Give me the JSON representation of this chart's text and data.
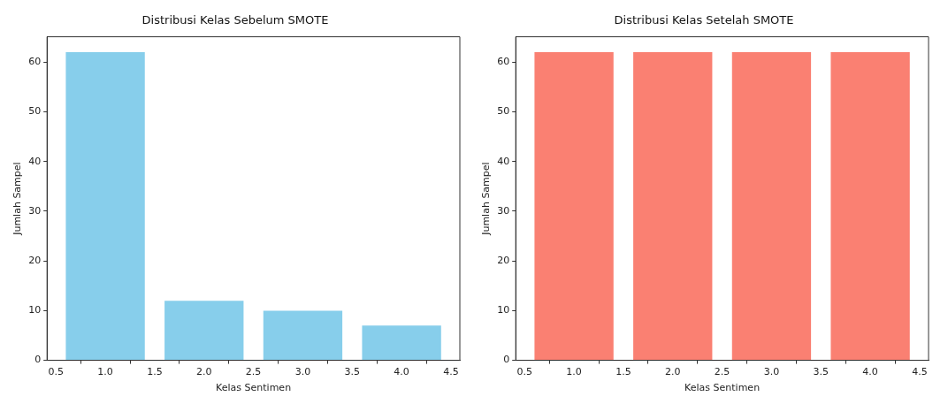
{
  "chart_data": [
    {
      "type": "bar",
      "title": "Distribusi Kelas Sebelum SMOTE",
      "xlabel": "Kelas Sentimen",
      "ylabel": "Jumlah Sampel",
      "x": [
        1,
        2,
        3,
        4
      ],
      "values": [
        62,
        12,
        10,
        7
      ],
      "color": "#87ceeb",
      "xlim": [
        0.41,
        4.59
      ],
      "xticks": [
        0.5,
        {
          "value": 1,
          "label": "1.0"
        },
        1.5,
        {
          "value": 2,
          "label": "2.0"
        },
        2.5,
        {
          "value": 3,
          "label": "3.0"
        },
        3.5,
        {
          "value": 4,
          "label": "4.0"
        },
        4.5
      ],
      "ylim": [
        0,
        65.1
      ],
      "yticks": [
        0,
        10,
        20,
        30,
        40,
        50,
        60
      ],
      "grid": false,
      "legend": false
    },
    {
      "type": "bar",
      "title": "Distribusi Kelas Setelah SMOTE",
      "xlabel": "Kelas Sentimen",
      "ylabel": "Jumlah Sampel",
      "x": [
        1,
        2,
        3,
        4
      ],
      "values": [
        62,
        62,
        62,
        62
      ],
      "color": "#fa8072",
      "xlim": [
        0.41,
        4.59
      ],
      "xticks": [
        0.5,
        {
          "value": 1,
          "label": "1.0"
        },
        1.5,
        {
          "value": 2,
          "label": "2.0"
        },
        2.5,
        {
          "value": 3,
          "label": "3.0"
        },
        3.5,
        {
          "value": 4,
          "label": "4.0"
        },
        4.5
      ],
      "ylim": [
        0,
        65.1
      ],
      "yticks": [
        0,
        10,
        20,
        30,
        40,
        50,
        60
      ],
      "grid": false,
      "legend": false
    }
  ]
}
